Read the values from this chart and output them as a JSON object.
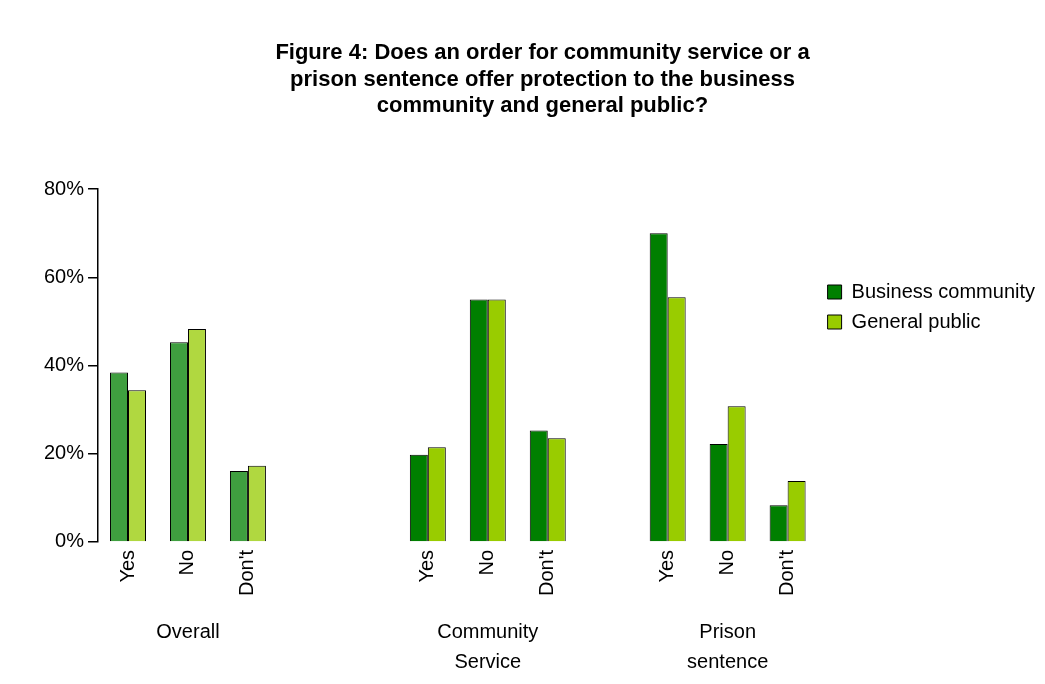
{
  "chart_data": {
    "type": "bar",
    "title": "Figure 4: Does an order for community service or a prison sentence offer protection to the business community and general public?",
    "categories": [
      "Yes",
      "No",
      "Don't",
      null,
      null,
      "Yes",
      "No",
      "Don't",
      null,
      "Yes",
      "No",
      "Don't"
    ],
    "series": [
      {
        "name": "Business community",
        "color": "#007f00",
        "colors": [
          "#3f9f3f",
          "#3f9f3f",
          "#3f9f3f",
          "#007f00",
          "#007f00",
          "#007f00",
          "#007f00",
          "#007f00",
          "#007f00",
          "#007f00",
          "#007f00",
          "#007f00"
        ],
        "values": [
          38.4,
          45.3,
          16.1,
          null,
          null,
          19.8,
          55.0,
          25.3,
          null,
          70.0,
          22.2,
          8.3
        ]
      },
      {
        "name": "General public",
        "color": "#99cc00",
        "colors": [
          "#b0d840",
          "#b0d840",
          "#b0d840",
          "#99cc00",
          "#99cc00",
          "#99cc00",
          "#99cc00",
          "#99cc00",
          "#99cc00",
          "#99cc00",
          "#99cc00",
          "#99cc00"
        ],
        "values": [
          34.4,
          48.3,
          17.3,
          null,
          null,
          21.5,
          55.0,
          23.5,
          null,
          55.5,
          30.8,
          13.8
        ]
      }
    ],
    "ylim": [
      0,
      80
    ],
    "yticks": [
      {
        "value": 0,
        "label": "0%"
      },
      {
        "value": 20,
        "label": "20%"
      },
      {
        "value": 40,
        "label": "40%"
      },
      {
        "value": 60,
        "label": "60%"
      },
      {
        "value": 80,
        "label": "80%"
      }
    ],
    "grid": false,
    "legend": "right",
    "annotations": [
      "Overall",
      "Community Service",
      "Prison sentence"
    ]
  }
}
